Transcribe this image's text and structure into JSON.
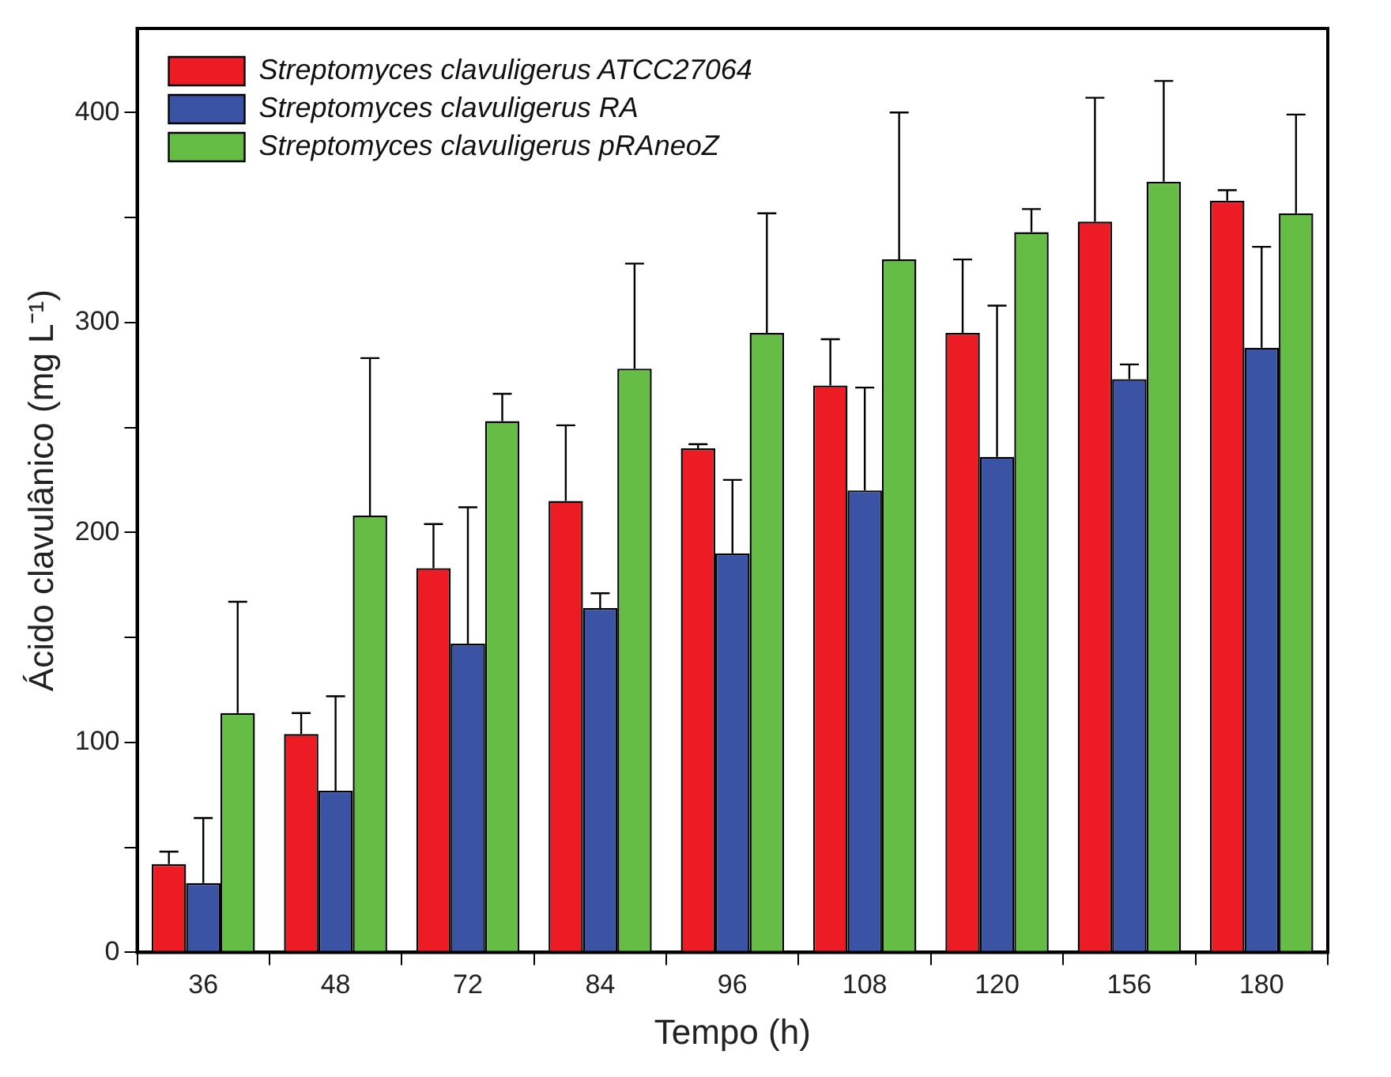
{
  "chart_data": {
    "type": "bar",
    "xlabel": "Tempo (h)",
    "ylabel": "Ácido clavulânico (mg L⁻¹)",
    "categories": [
      "36",
      "48",
      "72",
      "84",
      "96",
      "108",
      "120",
      "156",
      "180"
    ],
    "series": [
      {
        "name": "Streptomyces clavuligerus ATCC27064",
        "color": "#ed1c24",
        "values": [
          42,
          104,
          183,
          215,
          240,
          270,
          295,
          348,
          358
        ],
        "errors": [
          [
            42,
            48
          ],
          [
            104,
            114
          ],
          [
            183,
            204
          ],
          [
            215,
            251
          ],
          [
            240,
            242
          ],
          [
            270,
            292
          ],
          [
            295,
            330
          ],
          [
            348,
            407
          ],
          [
            358,
            363
          ]
        ]
      },
      {
        "name": "Streptomyces clavuligerus RA",
        "color": "#3a53a4",
        "values": [
          33,
          77,
          147,
          164,
          190,
          220,
          236,
          273,
          288
        ],
        "errors": [
          [
            33,
            64
          ],
          [
            77,
            122
          ],
          [
            147,
            212
          ],
          [
            164,
            171
          ],
          [
            190,
            225
          ],
          [
            220,
            269
          ],
          [
            236,
            308
          ],
          [
            273,
            280
          ],
          [
            288,
            336
          ]
        ]
      },
      {
        "name": "Streptomyces clavuligerus pRAneoZ",
        "color": "#66bd45",
        "values": [
          114,
          208,
          253,
          278,
          295,
          330,
          343,
          367,
          352
        ],
        "errors": [
          [
            114,
            167
          ],
          [
            208,
            283
          ],
          [
            253,
            266
          ],
          [
            278,
            328
          ],
          [
            295,
            352
          ],
          [
            330,
            400
          ],
          [
            343,
            354
          ],
          [
            367,
            415
          ],
          [
            352,
            399
          ]
        ]
      }
    ],
    "ylim": [
      0,
      440
    ],
    "yticks": [
      0,
      {
        "value": 50,
        "label": null
      },
      100,
      {
        "value": 150,
        "label": null
      },
      200,
      {
        "value": 250,
        "label": null
      },
      300,
      {
        "value": 350,
        "label": null
      },
      400
    ],
    "grid": false,
    "legend": "top left"
  }
}
